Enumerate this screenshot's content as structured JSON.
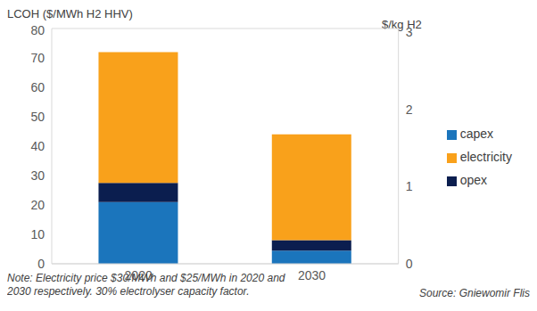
{
  "chart_data": {
    "type": "bar",
    "stacked": true,
    "y_label": "LCOH ($/MWh H2 HHV)",
    "y2_label": "$/kg H2",
    "categories": [
      "2020",
      "2030"
    ],
    "series": [
      {
        "name": "capex",
        "color": "#1b75bc",
        "values": [
          21,
          4.5
        ]
      },
      {
        "name": "opex",
        "color": "#0b1e4f",
        "values": [
          6.5,
          3.5
        ]
      },
      {
        "name": "electricity",
        "color": "#f9a11b",
        "values": [
          44.5,
          36
        ]
      }
    ],
    "ylim": [
      0,
      80
    ],
    "yticks": [
      0,
      10,
      20,
      30,
      40,
      50,
      60,
      70,
      80
    ],
    "y2lim": [
      0,
      3.05
    ],
    "y2ticks": [
      0,
      1,
      2,
      3
    ],
    "grid": true,
    "legend": "right",
    "note": "Note: Electricity price $30/MWh and $25/MWh in 2020 and 2030 respectively. 30% electrolyser capacity factor.",
    "source": "Source: Gniewomir Flis"
  }
}
